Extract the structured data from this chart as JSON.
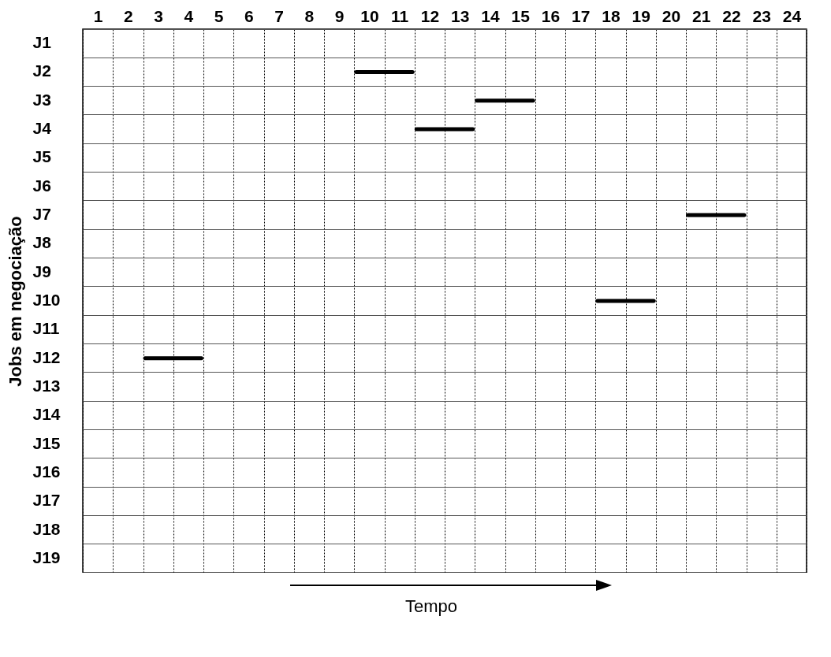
{
  "chart_data": {
    "type": "bar",
    "orientation": "horizontal",
    "xlabel": "Tempo",
    "ylabel": "Jobs em negociação",
    "categories": [
      "J1",
      "J2",
      "J3",
      "J4",
      "J5",
      "J6",
      "J7",
      "J8",
      "J9",
      "J10",
      "J11",
      "J12",
      "J13",
      "J14",
      "J15",
      "J16",
      "J17",
      "J18",
      "J19"
    ],
    "base": [
      null,
      9,
      13,
      11,
      null,
      null,
      20,
      null,
      null,
      17,
      null,
      2,
      null,
      null,
      null,
      null,
      null,
      null,
      null
    ],
    "values": [
      null,
      2,
      2,
      2,
      null,
      null,
      2,
      null,
      null,
      2,
      null,
      2,
      null,
      null,
      null,
      null,
      null,
      null,
      null
    ],
    "color": "#000000",
    "xlim": [
      0,
      24
    ],
    "xticks": [
      {
        "value": 0,
        "label": null
      },
      {
        "value": 0.5,
        "label": "1"
      },
      {
        "value": 1,
        "label": null
      },
      {
        "value": 1.5,
        "label": "2"
      },
      {
        "value": 2,
        "label": null
      },
      {
        "value": 2.5,
        "label": "3"
      },
      {
        "value": 3,
        "label": null
      },
      {
        "value": 3.5,
        "label": "4"
      },
      {
        "value": 4,
        "label": null
      },
      {
        "value": 4.5,
        "label": "5"
      },
      {
        "value": 5,
        "label": null
      },
      {
        "value": 5.5,
        "label": "6"
      },
      {
        "value": 6,
        "label": null
      },
      {
        "value": 6.5,
        "label": "7"
      },
      {
        "value": 7,
        "label": null
      },
      {
        "value": 7.5,
        "label": "8"
      },
      {
        "value": 8,
        "label": null
      },
      {
        "value": 8.5,
        "label": "9"
      },
      {
        "value": 9,
        "label": null
      },
      {
        "value": 9.5,
        "label": "10"
      },
      {
        "value": 10,
        "label": null
      },
      {
        "value": 10.5,
        "label": "11"
      },
      {
        "value": 11,
        "label": null
      },
      {
        "value": 11.5,
        "label": "12"
      },
      {
        "value": 12,
        "label": null
      },
      {
        "value": 12.5,
        "label": "13"
      },
      {
        "value": 13,
        "label": null
      },
      {
        "value": 13.5,
        "label": "14"
      },
      {
        "value": 14,
        "label": null
      },
      {
        "value": 14.5,
        "label": "15"
      },
      {
        "value": 15,
        "label": null
      },
      {
        "value": 15.5,
        "label": "16"
      },
      {
        "value": 16,
        "label": null
      },
      {
        "value": 16.5,
        "label": "17"
      },
      {
        "value": 17,
        "label": null
      },
      {
        "value": 17.5,
        "label": "18"
      },
      {
        "value": 18,
        "label": null
      },
      {
        "value": 18.5,
        "label": "19"
      },
      {
        "value": 19,
        "label": null
      },
      {
        "value": 19.5,
        "label": "20"
      },
      {
        "value": 20,
        "label": null
      },
      {
        "value": 20.5,
        "label": "21"
      },
      {
        "value": 21,
        "label": null
      },
      {
        "value": 21.5,
        "label": "22"
      },
      {
        "value": 22,
        "label": null
      },
      {
        "value": 22.5,
        "label": "23"
      },
      {
        "value": 23,
        "label": null
      },
      {
        "value": 23.5,
        "label": "24"
      },
      {
        "value": 24,
        "label": null
      }
    ],
    "grid": true
  }
}
